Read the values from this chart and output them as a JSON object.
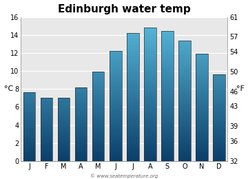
{
  "title": "Edinburgh water temp",
  "months": [
    "J",
    "F",
    "M",
    "A",
    "M",
    "J",
    "J",
    "A",
    "S",
    "O",
    "N",
    "D"
  ],
  "values_c": [
    7.6,
    7.0,
    7.0,
    8.2,
    9.9,
    12.2,
    14.2,
    14.8,
    14.4,
    13.4,
    11.9,
    9.6
  ],
  "ylim_c": [
    0,
    16
  ],
  "yticks_c": [
    0,
    2,
    4,
    6,
    8,
    10,
    12,
    14,
    16
  ],
  "ylim_f": [
    32,
    61
  ],
  "yticks_f": [
    32,
    36,
    39,
    43,
    46,
    50,
    54,
    57,
    61
  ],
  "ylabel_left": "°C",
  "ylabel_right": "°F",
  "bar_color_top": "#5abde0",
  "bar_color_bottom": "#0a3f6a",
  "plot_bg": "#e8e8e8",
  "fig_bg": "#ffffff",
  "watermark": "© www.seatemperature.org",
  "title_fontsize": 11,
  "tick_fontsize": 7,
  "label_fontsize": 8,
  "bar_width": 0.7
}
